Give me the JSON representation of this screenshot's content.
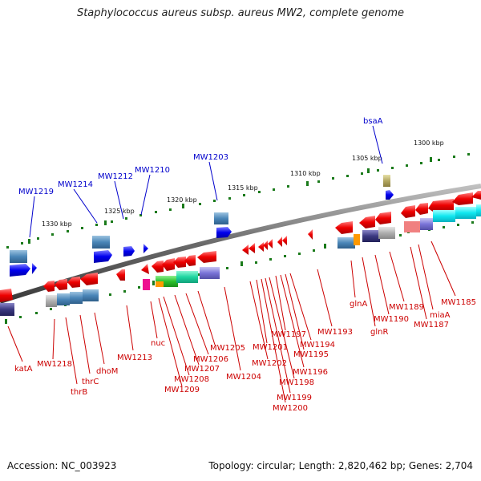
{
  "title": "Staphylococcus aureus subsp. aureus MW2, complete genome",
  "footer": {
    "accession": "Accession: NC_003923",
    "summary": "Topology: circular; Length: 2,820,462 bp; Genes: 2,704"
  },
  "colors": {
    "forward_gene": "#0000ee",
    "reverse_gene": "#ee0000",
    "tick": "#1a7a1a",
    "backbone": "#808080",
    "label_red": "#cc0000",
    "label_blue": "#0000cc"
  },
  "kbp_labels": [
    "1330 kbp",
    "1325 kbp",
    "1320 kbp",
    "1315 kbp",
    "1310 kbp",
    "1305 kbp",
    "1300 kbp"
  ],
  "blue_labels": [
    "MW1219",
    "MW1214",
    "MW1212",
    "MW1210",
    "MW1203",
    "bsaA"
  ],
  "red_labels": [
    "katA",
    "MW1218",
    "thrB",
    "thrC",
    "dhoM",
    "MW1213",
    "nuc",
    "MW1209",
    "MW1208",
    "MW1207",
    "MW1206",
    "MW1205",
    "MW1204",
    "MW1202",
    "MW1201",
    "MW1200",
    "MW1199",
    "MW1198",
    "MW1197",
    "MW1196",
    "MW1195",
    "MW1194",
    "MW1193",
    "glnA",
    "glnR",
    "MW1190",
    "MW1189",
    "MW1187",
    "miaA",
    "MW1185"
  ]
}
